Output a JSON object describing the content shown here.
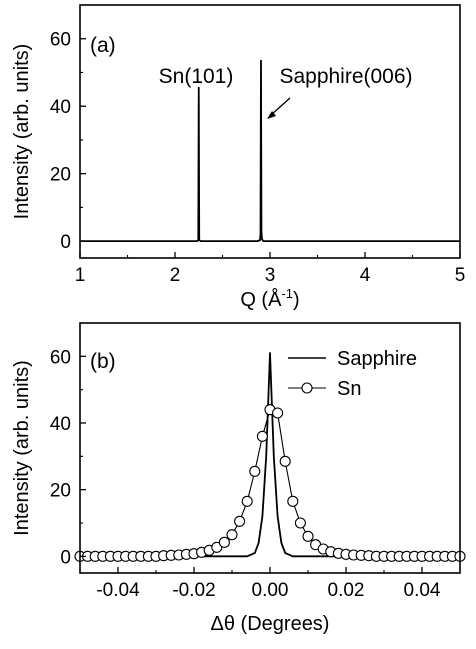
{
  "chart_data": [
    {
      "type": "line",
      "panel_label": "(a)",
      "xlabel_main": "Q (Å",
      "xlabel_sup": "-1",
      "xlabel_end": ")",
      "ylabel": "Intensity (arb. units)",
      "xlim": [
        1,
        5
      ],
      "ylim": [
        -5,
        70
      ],
      "xticks": [
        1,
        2,
        3,
        4,
        5
      ],
      "yticks": [
        0,
        20,
        40,
        60
      ],
      "grid": false,
      "series": [
        {
          "x": [
            1.0,
            2.23,
            2.245,
            2.25,
            2.255,
            2.27,
            2.87,
            2.895,
            2.9,
            2.905,
            2.91,
            2.915,
            2.93,
            5.0
          ],
          "y": [
            0.0,
            0.0,
            0.3,
            45.5,
            0.3,
            0.0,
            0.0,
            0.3,
            2.0,
            53.5,
            3.0,
            0.6,
            0.0,
            0.0
          ]
        }
      ],
      "annotations": [
        {
          "text": "Sn(101)",
          "x": 2.25,
          "y": 45.5
        },
        {
          "text": "Sapphire(006)",
          "x": 2.905,
          "y": 53.5,
          "arrow": true
        }
      ]
    },
    {
      "type": "line",
      "panel_label": "(b)",
      "xlabel": "Δθ (Degrees)",
      "ylabel": "Intensity (arb. units)",
      "xlim": [
        -0.05,
        0.05
      ],
      "ylim": [
        -5,
        70
      ],
      "xticks": [
        -0.04,
        -0.02,
        0.0,
        0.02,
        0.04
      ],
      "xtick_labels": [
        "-0.04",
        "-0.02",
        "0.00",
        "0.02",
        "0.04"
      ],
      "yticks": [
        0,
        20,
        40,
        60
      ],
      "grid": false,
      "legend_position": "top-right",
      "series": [
        {
          "name": "Sapphire",
          "marker": "none",
          "x": [
            -0.05,
            -0.006,
            -0.004,
            -0.003,
            -0.002,
            -0.001,
            0.0,
            0.001,
            0.002,
            0.003,
            0.004,
            0.006,
            0.05
          ],
          "y": [
            0.0,
            0.0,
            1.0,
            4.0,
            12.0,
            30.0,
            61.0,
            30.0,
            12.0,
            4.0,
            1.0,
            0.0,
            0.0
          ]
        },
        {
          "name": "Sn",
          "marker": "circle",
          "x": [
            -0.05,
            -0.048,
            -0.046,
            -0.044,
            -0.042,
            -0.04,
            -0.038,
            -0.036,
            -0.034,
            -0.032,
            -0.03,
            -0.028,
            -0.026,
            -0.024,
            -0.022,
            -0.02,
            -0.018,
            -0.016,
            -0.014,
            -0.012,
            -0.01,
            -0.008,
            -0.006,
            -0.004,
            -0.002,
            0.0,
            0.002,
            0.004,
            0.006,
            0.008,
            0.01,
            0.012,
            0.014,
            0.016,
            0.018,
            0.02,
            0.022,
            0.024,
            0.026,
            0.028,
            0.03,
            0.032,
            0.034,
            0.036,
            0.038,
            0.04,
            0.042,
            0.044,
            0.046,
            0.048,
            0.05
          ],
          "y": [
            0.0,
            0.0,
            0.0,
            0.0,
            0.0,
            0.0,
            0.0,
            0.0,
            0.0,
            0.0,
            0.0,
            0.2,
            0.3,
            0.4,
            0.6,
            0.8,
            1.2,
            1.8,
            2.7,
            4.2,
            6.5,
            10.5,
            16.5,
            25.5,
            36.0,
            44.0,
            43.0,
            28.5,
            16.5,
            10.0,
            6.0,
            3.5,
            2.2,
            1.4,
            0.9,
            0.6,
            0.4,
            0.3,
            0.2,
            0.0,
            0.0,
            0.0,
            0.0,
            0.0,
            0.0,
            0.0,
            0.0,
            0.0,
            0.0,
            0.0,
            0.0
          ]
        }
      ]
    }
  ]
}
